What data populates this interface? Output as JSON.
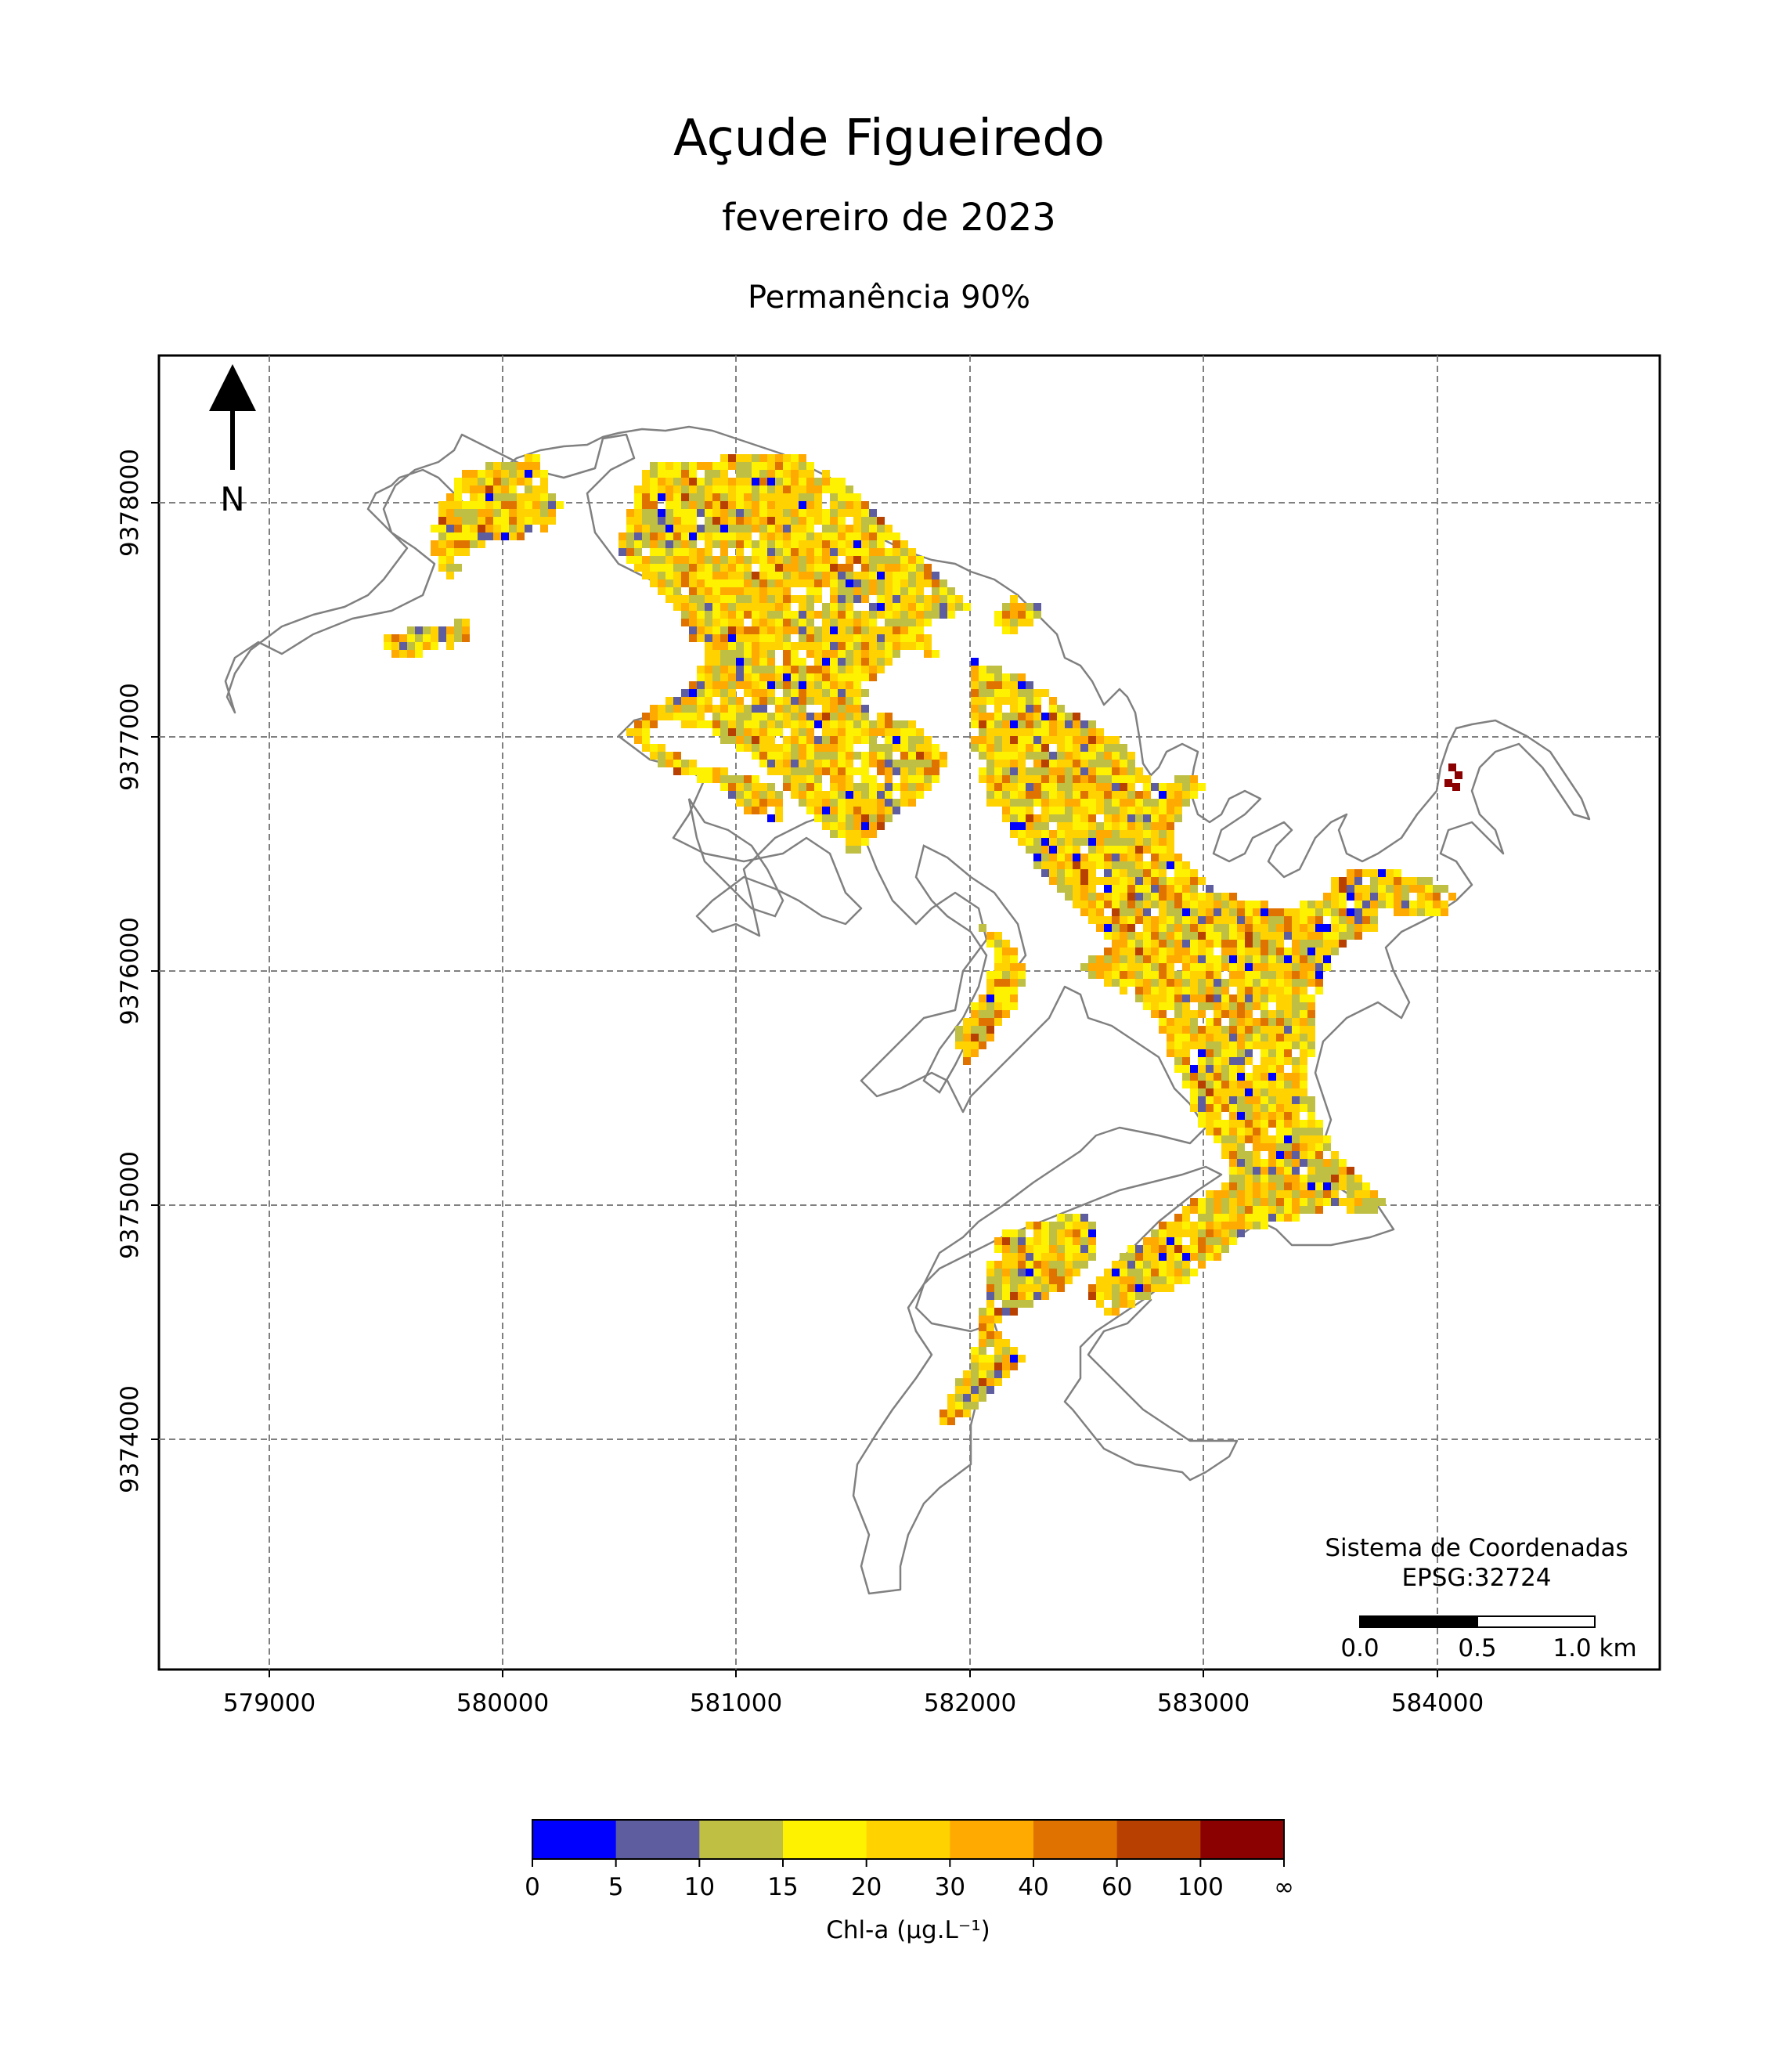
{
  "title": "Açude Figueiredo",
  "subtitle": "fevereiro de 2023",
  "permanence": "Permanência 90%",
  "north_label": "N",
  "crs": {
    "line1": "Sistema de Coordenadas",
    "line2": "EPSG:32724"
  },
  "scalebar": {
    "labels": [
      "0.0",
      "0.5",
      "1.0 km"
    ]
  },
  "axes": {
    "x_ticks": [
      "579000",
      "580000",
      "581000",
      "582000",
      "583000",
      "584000"
    ],
    "y_ticks": [
      "9378000",
      "9377000",
      "9376000",
      "9375000",
      "9374000"
    ]
  },
  "colorbar": {
    "label": "Chl-a (μg.L⁻¹)",
    "ticks": [
      "0",
      "5",
      "10",
      "15",
      "20",
      "30",
      "40",
      "60",
      "100",
      "∞"
    ],
    "colors": [
      "#0000ff",
      "#5d5da0",
      "#bfbf44",
      "#fff200",
      "#ffd200",
      "#ffaa00",
      "#e07200",
      "#b84000",
      "#8b0000"
    ]
  },
  "colors": {
    "outline": "#808080",
    "grid": "#808080"
  }
}
